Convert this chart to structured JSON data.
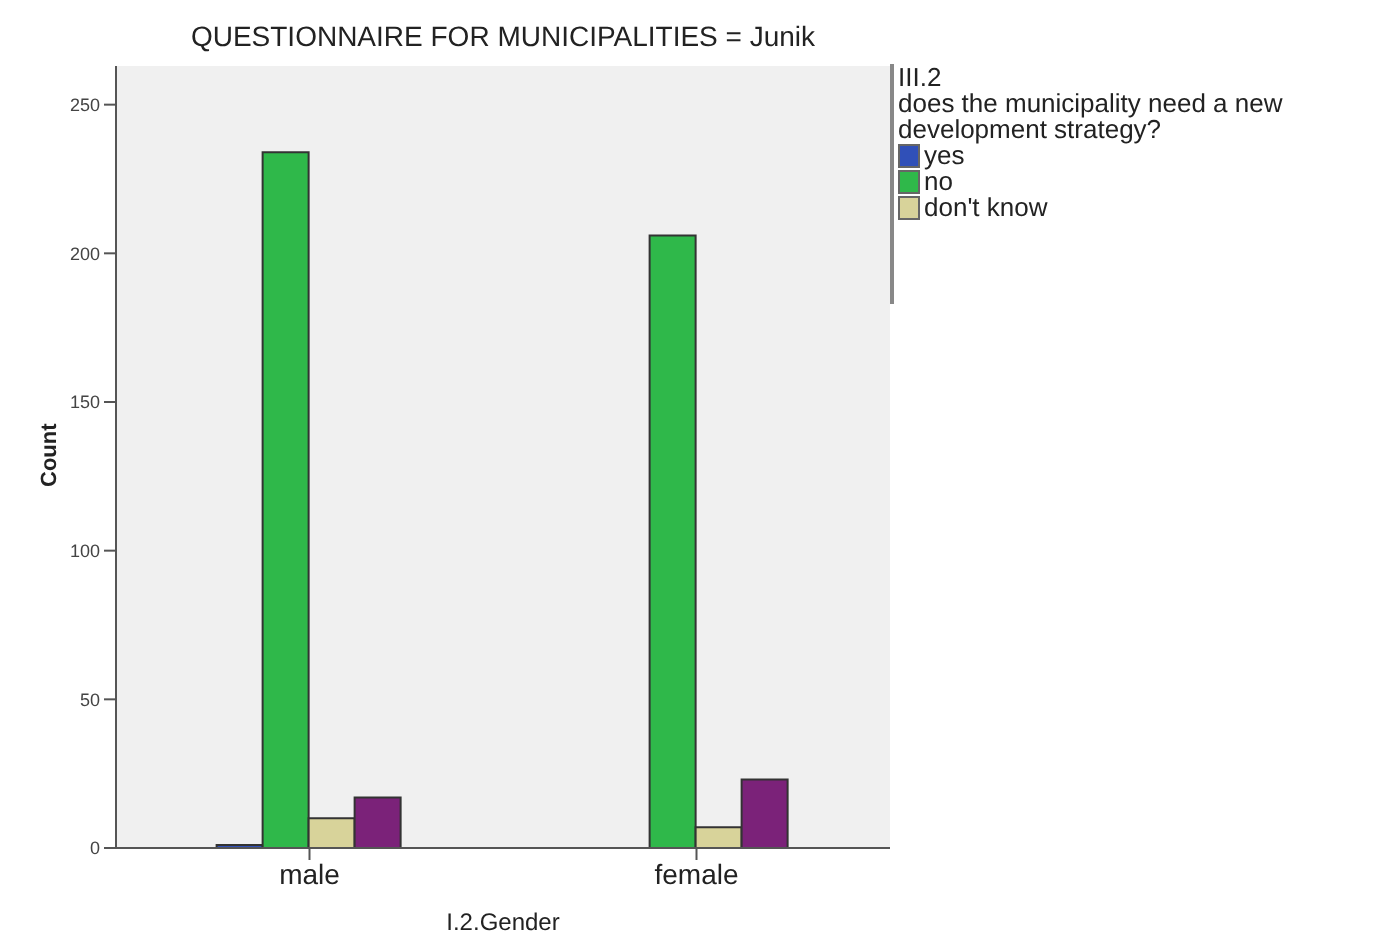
{
  "chart_data": {
    "type": "bar",
    "title": "QUESTIONNAIRE FOR MUNICIPALITIES = Junik",
    "xlabel": "I.2.Gender",
    "ylabel": "Count",
    "legend_title": "III.2\ndoes the municipality need a new development strategy?",
    "categories": [
      "male",
      "female"
    ],
    "series": [
      {
        "name": "yes",
        "color": "#3050b8",
        "values": [
          1,
          0
        ]
      },
      {
        "name": "no",
        "color": "#2fb84a",
        "values": [
          234,
          206
        ]
      },
      {
        "name": "don't know",
        "color": "#d8d39a",
        "values": [
          10,
          7
        ]
      },
      {
        "color": "#7b2279",
        "values": [
          17,
          23
        ]
      }
    ],
    "ylim": [
      0,
      263
    ],
    "yticks": [
      0,
      50,
      100,
      150,
      200,
      250
    ],
    "legend": "right"
  }
}
